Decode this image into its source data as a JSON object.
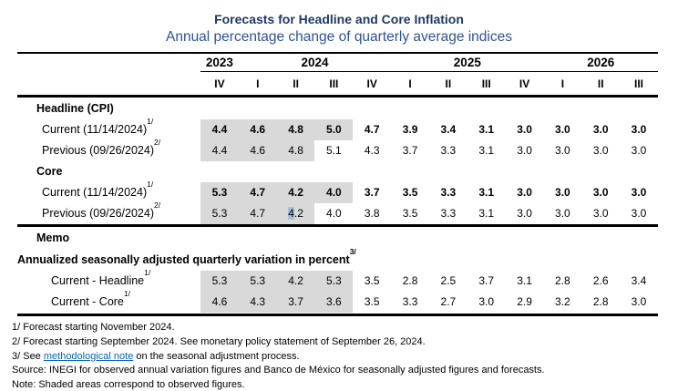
{
  "chart_data": {
    "type": "table",
    "title": "Forecasts for Headline and Core Inflation",
    "subtitle": "Annual percentage change of quarterly average indices",
    "year_groups": [
      {
        "label": "2023",
        "span": 1
      },
      {
        "label": "2024",
        "span": 4
      },
      {
        "label": "2025",
        "span": 4
      },
      {
        "label": "2026",
        "span": 3
      }
    ],
    "quarters": [
      "IV",
      "I",
      "II",
      "III",
      "IV",
      "I",
      "II",
      "III",
      "IV",
      "I",
      "II",
      "III"
    ],
    "rows": [
      {
        "type": "section",
        "label": "Headline (CPI)",
        "indent": "section"
      },
      {
        "type": "data",
        "label": "Current (11/14/2024)",
        "sup": "1/",
        "bold": true,
        "shaded": 4,
        "values": [
          "4.4",
          "4.6",
          "4.8",
          "5.0",
          "4.7",
          "3.9",
          "3.4",
          "3.1",
          "3.0",
          "3.0",
          "3.0",
          "3.0"
        ]
      },
      {
        "type": "data",
        "label": "Previous (09/26/2024)",
        "sup": "2/",
        "bold": false,
        "shaded": 3,
        "values": [
          "4.4",
          "4.6",
          "4.8",
          "5.1",
          "4.3",
          "3.7",
          "3.3",
          "3.1",
          "3.0",
          "3.0",
          "3.0",
          "3.0"
        ]
      },
      {
        "type": "section",
        "label": "Core",
        "indent": "section"
      },
      {
        "type": "data",
        "label": "Current (11/14/2024)",
        "sup": "1/",
        "bold": true,
        "shaded": 4,
        "values": [
          "5.3",
          "4.7",
          "4.2",
          "4.0",
          "3.7",
          "3.5",
          "3.3",
          "3.1",
          "3.0",
          "3.0",
          "3.0",
          "3.0"
        ]
      },
      {
        "type": "data",
        "label": "Previous (09/26/2024)",
        "sup": "2/",
        "bold": false,
        "shaded": 3,
        "values": [
          "5.3",
          "4.7",
          "4.2",
          "4.0",
          "3.8",
          "3.5",
          "3.3",
          "3.1",
          "3.0",
          "3.0",
          "3.0",
          "3.0"
        ],
        "selection": {
          "col": 2,
          "chars": 1
        }
      },
      {
        "type": "section",
        "label": "Memo",
        "indent": "memo"
      },
      {
        "type": "section",
        "label": "Annualized seasonally adjusted quarterly variation in percent",
        "sup": "3/",
        "indent": "flush"
      },
      {
        "type": "data",
        "label": "Current - Headline",
        "sup": "1/",
        "bold": false,
        "shaded": 4,
        "indent": "memo-data",
        "values": [
          "5.3",
          "5.3",
          "4.2",
          "5.3",
          "3.5",
          "2.8",
          "2.5",
          "3.7",
          "3.1",
          "2.8",
          "2.6",
          "3.4"
        ]
      },
      {
        "type": "data",
        "label": "Current - Core",
        "sup": "1/",
        "bold": false,
        "shaded": 4,
        "indent": "memo-data",
        "values": [
          "4.6",
          "4.3",
          "3.7",
          "3.6",
          "3.5",
          "3.3",
          "2.7",
          "3.0",
          "2.9",
          "3.2",
          "2.8",
          "3.0"
        ]
      }
    ]
  },
  "footnotes": [
    {
      "parts": [
        {
          "text": "1/ Forecast starting November 2024."
        }
      ]
    },
    {
      "parts": [
        {
          "text": "2/ Forecast starting September 2024. See monetary policy statement of September 26, 2024."
        }
      ]
    },
    {
      "parts": [
        {
          "text": "3/ See "
        },
        {
          "text": "methodological note",
          "link": true
        },
        {
          "text": " on the seasonal adjustment process."
        }
      ]
    },
    {
      "parts": [
        {
          "text": "Source: INEGI for observed annual variation figures and Banco de México for seasonally adjusted figures and forecasts."
        }
      ]
    },
    {
      "parts": [
        {
          "text": "Note: Shaded areas correspond to observed figures."
        }
      ]
    }
  ],
  "colors": {
    "title": "#1f3864",
    "subtitle": "#2e5496",
    "rule": "#000000",
    "shaded_cell": "#d9d9d9",
    "selection_highlight": "#a9c0da",
    "link": "#0563c1"
  }
}
